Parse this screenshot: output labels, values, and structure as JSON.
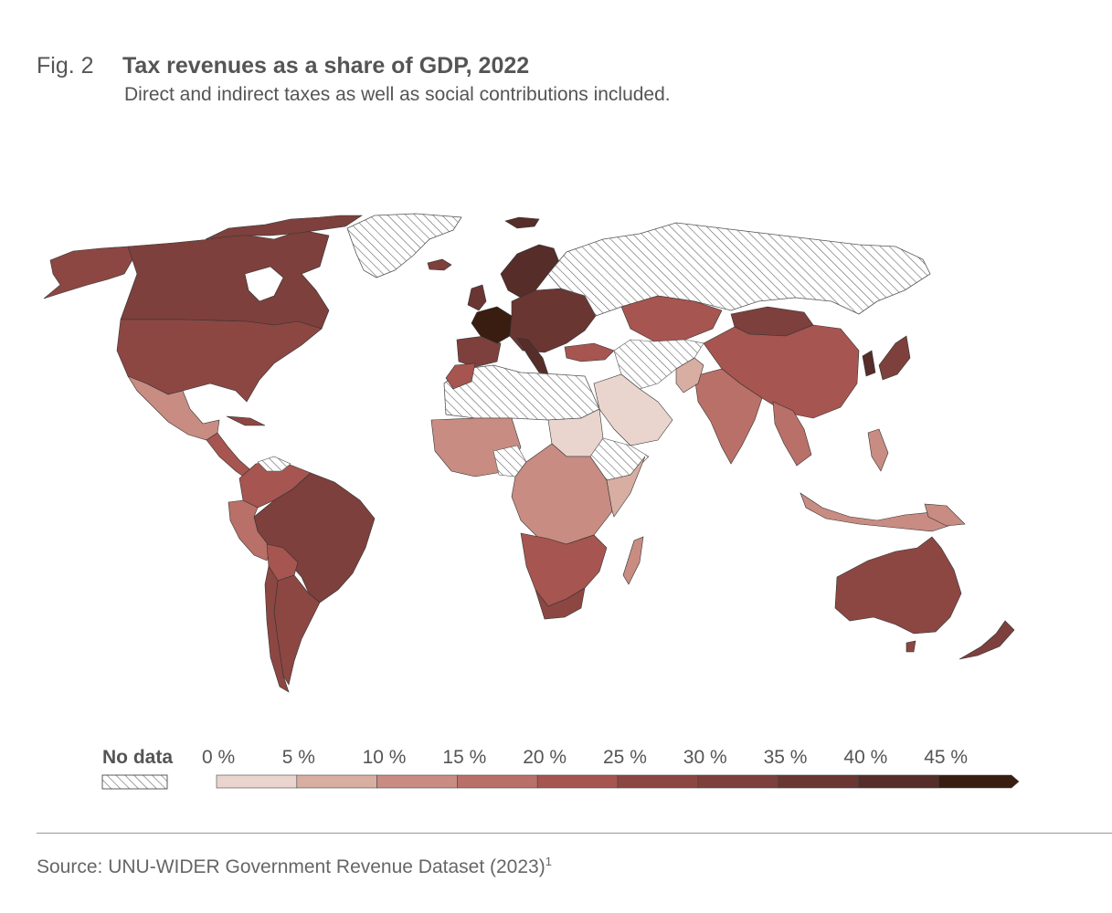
{
  "header": {
    "fig_label": "Fig. 2",
    "title": "Tax revenues as a share of GDP, 2022",
    "subtitle": "Direct and indirect taxes as well as social contributions included."
  },
  "legend": {
    "no_data_label": "No data",
    "bins": [
      {
        "label": "0 %",
        "color": "#ead5ce"
      },
      {
        "label": "5 %",
        "color": "#d8ada2"
      },
      {
        "label": "10 %",
        "color": "#c88c82"
      },
      {
        "label": "15 %",
        "color": "#b97068"
      },
      {
        "label": "20 %",
        "color": "#a65550"
      },
      {
        "label": "25 %",
        "color": "#8c4743"
      },
      {
        "label": "30 %",
        "color": "#7d403c"
      },
      {
        "label": "35 %",
        "color": "#6a3632"
      },
      {
        "label": "40 %",
        "color": "#562d29"
      },
      {
        "label": "45 %",
        "color": "#3a1d11"
      }
    ]
  },
  "footer": {
    "source": "Source: UNU-WIDER Government Revenue Dataset (2023)",
    "source_note": "1"
  }
}
